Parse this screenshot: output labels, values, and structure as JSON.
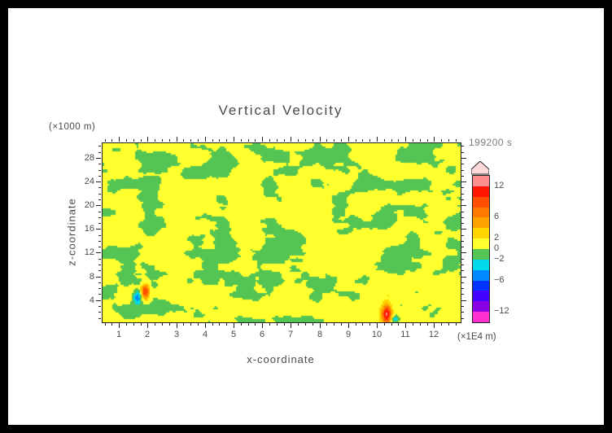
{
  "title": "Vertical Velocity",
  "timestamp": "199200 s",
  "axes": {
    "x_label": "x-coordinate",
    "x_unit": "(×1E4 m)",
    "y_label": "z-coordinate",
    "y_unit": "(×1000 m)",
    "x_ticks": [
      1,
      2,
      3,
      4,
      5,
      6,
      7,
      8,
      9,
      10,
      11,
      12
    ],
    "y_ticks": [
      4,
      8,
      12,
      16,
      20,
      24,
      28
    ]
  },
  "colorbar": {
    "labels": [
      12,
      6,
      2,
      0,
      -2,
      -6,
      -12
    ]
  },
  "chart_data": {
    "type": "heatmap",
    "title": "Vertical Velocity",
    "xlabel": "x-coordinate (×1E4 m)",
    "ylabel": "z-coordinate (×1000 m)",
    "time_label": "199200 s",
    "x_range": [
      0.4,
      12.9
    ],
    "z_range": [
      0.4,
      30.6
    ],
    "contour_levels": [
      -14,
      -12,
      -10,
      -8,
      -6,
      -4,
      -2,
      0,
      2,
      4,
      6,
      8,
      10,
      12,
      14
    ],
    "level_colors": [
      "#ff2fd0",
      "#8a00e6",
      "#4400ff",
      "#0033ff",
      "#0088ff",
      "#00d9e8",
      "#54c454",
      "#ffff2e",
      "#ffd400",
      "#ffa200",
      "#ff7a00",
      "#ff4e00",
      "#ff1500",
      "#ff8f8f"
    ],
    "overflow_color": "#ffd9d9",
    "field": {
      "description": "Vertical velocity w at t=199200 s; mottled turbulent field, nearly everywhere within -2..+2 m/s (yellow 0..2, green -2..0) in horizontally elongated streaks; isolated small updraft/downdraft dipoles near x=1.8,z=5 and x=10.3,z=1.5 reaching roughly +12 and -6.",
      "seed": 42,
      "bias": 0.3,
      "base_amplitude": 1.8,
      "octaves": [
        [
          15,
          13,
          1.0
        ],
        [
          30,
          26,
          0.5
        ],
        [
          60,
          52,
          0.25
        ]
      ],
      "anomalies": [
        {
          "x": 1.9,
          "z": 5.6,
          "sx": 0.1,
          "sz": 0.9,
          "amp": 10
        },
        {
          "x": 1.62,
          "z": 4.6,
          "sx": 0.1,
          "sz": 0.8,
          "amp": -6
        },
        {
          "x": 10.32,
          "z": 1.8,
          "sx": 0.12,
          "sz": 1.1,
          "amp": 12
        },
        {
          "x": 10.6,
          "z": 0.9,
          "sx": 0.1,
          "sz": 0.5,
          "amp": -5
        }
      ]
    }
  }
}
